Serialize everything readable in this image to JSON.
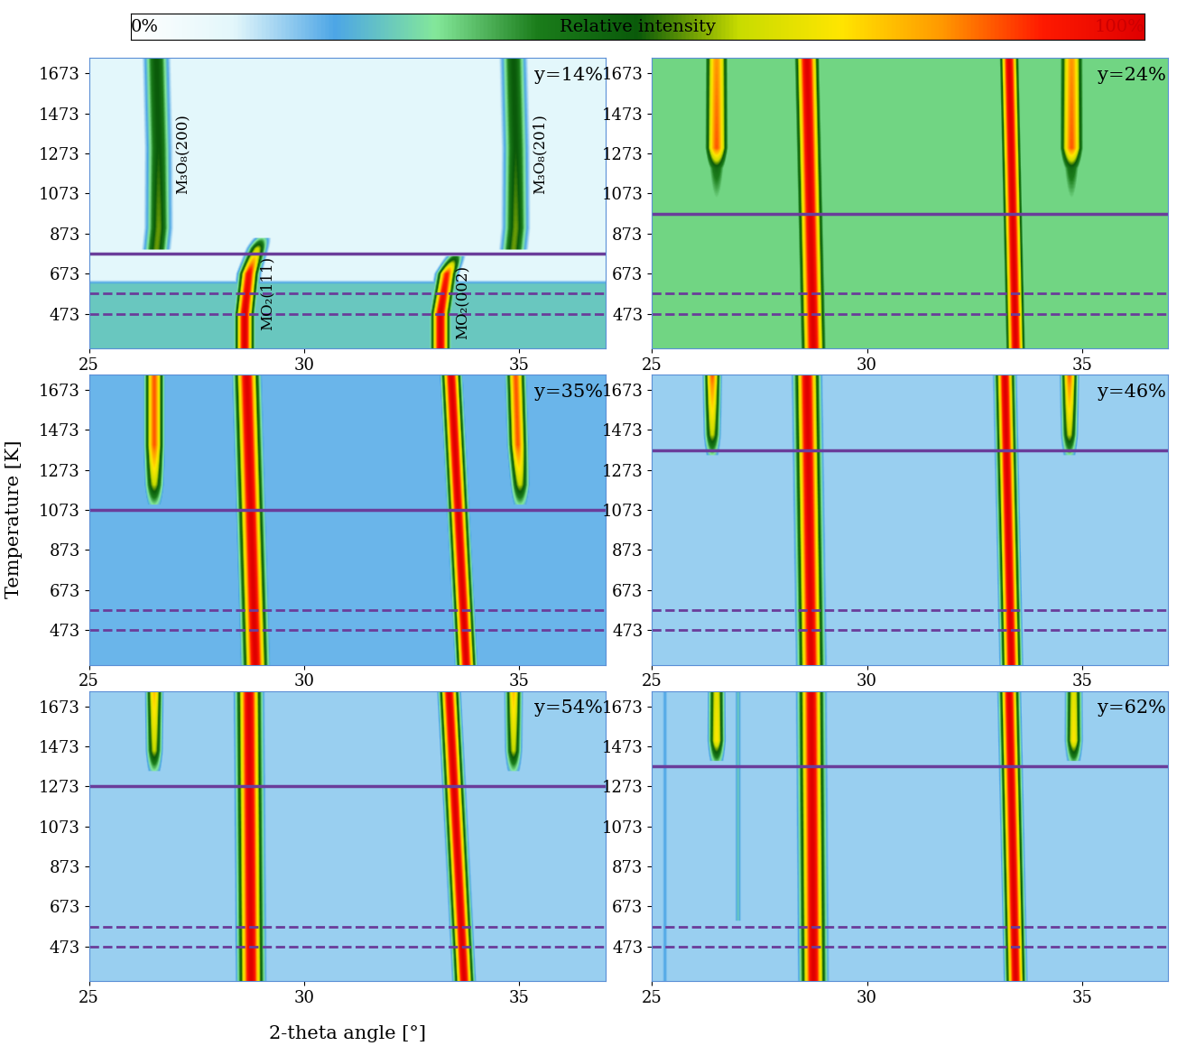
{
  "chart_data": {
    "type": "heatmap",
    "xlabel": "2-theta angle [°]",
    "ylabel": "Temperature [K]",
    "xlim": [
      25,
      37
    ],
    "xticks": [
      25,
      30,
      35
    ],
    "ylim": [
      300,
      1750
    ],
    "yticks": [
      473,
      673,
      873,
      1073,
      1273,
      1473,
      1673
    ],
    "colorbar": {
      "label": "Relative intensity",
      "range": [
        0,
        100
      ],
      "ticks": [
        {
          "value": 0,
          "label": "0%"
        },
        {
          "value": 100,
          "label": "100%"
        }
      ],
      "colors": [
        "#ffffff",
        "#e3f7fb",
        "#4da6e6",
        "#84e89a",
        "#1b7d1b",
        "#0a5a0a",
        "#c8dc00",
        "#ffe600",
        "#ff9900",
        "#ff1a00",
        "#e00000"
      ]
    },
    "panels": [
      {
        "title": "y=14%",
        "color": "#6a3d9a",
        "solid_line": 773,
        "dashed_lines": [
          573,
          473
        ],
        "background": {
          "temperature": [
            300,
            620,
            640,
            1750
          ],
          "intensity": [
            25,
            25,
            10,
            10
          ]
        },
        "peaks": [
          {
            "label": "M₃O₈(200)",
            "fwhm": 0.45,
            "temperature": [
              793,
              900,
              1300,
              1750
            ],
            "two_theta": [
              26.55,
              26.6,
              26.6,
              26.55
            ],
            "intensity": [
              55,
              55,
              50,
              50
            ]
          },
          {
            "label": "M₃O₈(201)",
            "fwhm": 0.45,
            "temperature": [
              793,
              900,
              1300,
              1750
            ],
            "two_theta": [
              34.85,
              34.9,
              34.9,
              34.85
            ],
            "intensity": [
              55,
              55,
              50,
              50
            ]
          },
          {
            "label": "MO₂(111)",
            "fwhm": 0.35,
            "temperature": [
              300,
              473,
              673,
              800,
              850
            ],
            "two_theta": [
              28.6,
              28.6,
              28.7,
              28.9,
              29.0
            ],
            "intensity": [
              100,
              100,
              95,
              60,
              30
            ]
          },
          {
            "label": "MO₂(002)",
            "fwhm": 0.35,
            "temperature": [
              300,
              473,
              673,
              760
            ],
            "two_theta": [
              33.15,
              33.15,
              33.3,
              33.5
            ],
            "intensity": [
              100,
              100,
              90,
              40
            ]
          }
        ]
      },
      {
        "title": "y=24%",
        "color": "#6a3d9a",
        "solid_line": 973,
        "dashed_lines": [
          573,
          473
        ],
        "background": {
          "temperature": [
            300,
            1750
          ],
          "intensity": [
            32,
            32
          ]
        },
        "peaks": [
          {
            "fwhm": 0.45,
            "temperature": [
              973,
              1200,
              1300,
              1750
            ],
            "two_theta": [
              26.5,
              26.5,
              26.5,
              26.5
            ],
            "intensity": [
              25,
              45,
              85,
              80
            ]
          },
          {
            "fwhm": 0.45,
            "temperature": [
              973,
              1200,
              1300,
              1750
            ],
            "two_theta": [
              34.75,
              34.75,
              34.75,
              34.75
            ],
            "intensity": [
              25,
              45,
              85,
              80
            ]
          },
          {
            "fwhm": 0.45,
            "temperature": [
              300,
              1750
            ],
            "two_theta": [
              28.75,
              28.6
            ],
            "intensity": [
              100,
              100
            ]
          },
          {
            "fwhm": 0.35,
            "temperature": [
              300,
              1750
            ],
            "two_theta": [
              33.45,
              33.3
            ],
            "intensity": [
              100,
              100
            ]
          }
        ]
      },
      {
        "title": "y=35%",
        "color": "#6a3d9a",
        "solid_line": 1073,
        "dashed_lines": [
          573,
          473
        ],
        "background": {
          "temperature": [
            300,
            1750
          ],
          "intensity": [
            18,
            18
          ]
        },
        "peaks": [
          {
            "fwhm": 0.35,
            "temperature": [
              1100,
              1200,
              1400,
              1750
            ],
            "two_theta": [
              26.5,
              26.5,
              26.5,
              26.5
            ],
            "intensity": [
              30,
              60,
              85,
              85
            ]
          },
          {
            "fwhm": 0.35,
            "temperature": [
              1100,
              1200,
              1400,
              1750
            ],
            "two_theta": [
              35.0,
              35.0,
              34.95,
              34.9
            ],
            "intensity": [
              30,
              60,
              85,
              85
            ]
          },
          {
            "fwhm": 0.45,
            "temperature": [
              300,
              1750
            ],
            "two_theta": [
              28.85,
              28.65
            ],
            "intensity": [
              100,
              100
            ]
          },
          {
            "fwhm": 0.35,
            "temperature": [
              300,
              1750
            ],
            "two_theta": [
              33.75,
              33.4
            ],
            "intensity": [
              100,
              100
            ]
          }
        ]
      },
      {
        "title": "y=46%",
        "color": "#6a3d9a",
        "solid_line": 1373,
        "dashed_lines": [
          573,
          473
        ],
        "background": {
          "temperature": [
            300,
            1750
          ],
          "intensity": [
            15,
            15
          ]
        },
        "peaks": [
          {
            "fwhm": 0.3,
            "temperature": [
              1350,
              1450,
              1750
            ],
            "two_theta": [
              26.4,
              26.4,
              26.4
            ],
            "intensity": [
              30,
              60,
              85
            ]
          },
          {
            "fwhm": 0.3,
            "temperature": [
              1350,
              1450,
              1750
            ],
            "two_theta": [
              34.7,
              34.7,
              34.7
            ],
            "intensity": [
              30,
              60,
              85
            ]
          },
          {
            "fwhm": 0.45,
            "temperature": [
              300,
              1750
            ],
            "two_theta": [
              28.7,
              28.6
            ],
            "intensity": [
              100,
              100
            ]
          },
          {
            "fwhm": 0.35,
            "temperature": [
              300,
              1750
            ],
            "two_theta": [
              33.35,
              33.2
            ],
            "intensity": [
              100,
              100
            ]
          }
        ]
      },
      {
        "title": "y=54%",
        "color": "#6a3d9a",
        "solid_line": 1273,
        "dashed_lines": [
          573,
          473
        ],
        "background": {
          "temperature": [
            300,
            1750
          ],
          "intensity": [
            15,
            15
          ]
        },
        "peaks": [
          {
            "fwhm": 0.3,
            "temperature": [
              1350,
              1450,
              1750
            ],
            "two_theta": [
              26.5,
              26.5,
              26.5
            ],
            "intensity": [
              30,
              60,
              75
            ]
          },
          {
            "fwhm": 0.3,
            "temperature": [
              1350,
              1450,
              1750
            ],
            "two_theta": [
              34.85,
              34.85,
              34.85
            ],
            "intensity": [
              30,
              60,
              75
            ]
          },
          {
            "fwhm": 0.45,
            "temperature": [
              300,
              1750
            ],
            "two_theta": [
              28.75,
              28.7
            ],
            "intensity": [
              100,
              100
            ]
          },
          {
            "fwhm": 0.35,
            "temperature": [
              300,
              1750
            ],
            "two_theta": [
              33.7,
              33.35
            ],
            "intensity": [
              100,
              100
            ]
          }
        ]
      },
      {
        "title": "y=62%",
        "color": "#6a3d9a",
        "solid_line": 1373,
        "dashed_lines": [
          573,
          473
        ],
        "background": {
          "temperature": [
            300,
            1750
          ],
          "intensity": [
            15,
            15
          ]
        },
        "peaks": [
          {
            "fwhm": 0.3,
            "temperature": [
              1400,
              1500,
              1750
            ],
            "two_theta": [
              26.5,
              26.5,
              26.5
            ],
            "intensity": [
              35,
              70,
              65
            ]
          },
          {
            "fwhm": 0.3,
            "temperature": [
              1400,
              1500,
              1750
            ],
            "two_theta": [
              34.8,
              34.8,
              34.8
            ],
            "intensity": [
              35,
              70,
              65
            ]
          },
          {
            "fwhm": 0.15,
            "temperature": [
              600,
              1750
            ],
            "two_theta": [
              27.0,
              27.0
            ],
            "intensity": [
              25,
              25
            ]
          },
          {
            "fwhm": 0.15,
            "temperature": [
              300,
              1750
            ],
            "two_theta": [
              25.3,
              25.3
            ],
            "intensity": [
              20,
              20
            ]
          },
          {
            "fwhm": 0.45,
            "temperature": [
              300,
              1750
            ],
            "two_theta": [
              28.75,
              28.7
            ],
            "intensity": [
              100,
              100
            ]
          },
          {
            "fwhm": 0.35,
            "temperature": [
              300,
              1750
            ],
            "two_theta": [
              33.45,
              33.3
            ],
            "intensity": [
              100,
              100
            ]
          }
        ]
      }
    ]
  }
}
